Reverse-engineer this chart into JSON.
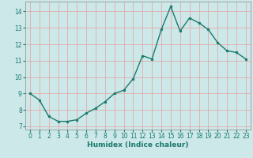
{
  "x": [
    0,
    1,
    2,
    3,
    4,
    5,
    6,
    7,
    8,
    9,
    10,
    11,
    12,
    13,
    14,
    15,
    16,
    17,
    18,
    19,
    20,
    21,
    22,
    23
  ],
  "y": [
    9.0,
    8.6,
    7.6,
    7.3,
    7.3,
    7.4,
    7.8,
    8.1,
    8.5,
    9.0,
    9.2,
    9.9,
    11.3,
    11.1,
    12.9,
    14.3,
    12.8,
    13.6,
    13.3,
    12.9,
    12.1,
    11.6,
    11.5,
    11.1
  ],
  "line_color": "#1a7a6e",
  "marker": "o",
  "markersize": 2,
  "linewidth": 1.0,
  "xlabel": "Humidex (Indice chaleur)",
  "xlim": [
    -0.5,
    23.5
  ],
  "ylim": [
    6.8,
    14.6
  ],
  "yticks": [
    7,
    8,
    9,
    10,
    11,
    12,
    13,
    14
  ],
  "xticks": [
    0,
    1,
    2,
    3,
    4,
    5,
    6,
    7,
    8,
    9,
    10,
    11,
    12,
    13,
    14,
    15,
    16,
    17,
    18,
    19,
    20,
    21,
    22,
    23
  ],
  "background_color": "#cce8e8",
  "grid_color": "#e8a0a0",
  "tick_color": "#1a7a6e",
  "xlabel_fontsize": 6.5,
  "tick_fontsize": 5.5
}
